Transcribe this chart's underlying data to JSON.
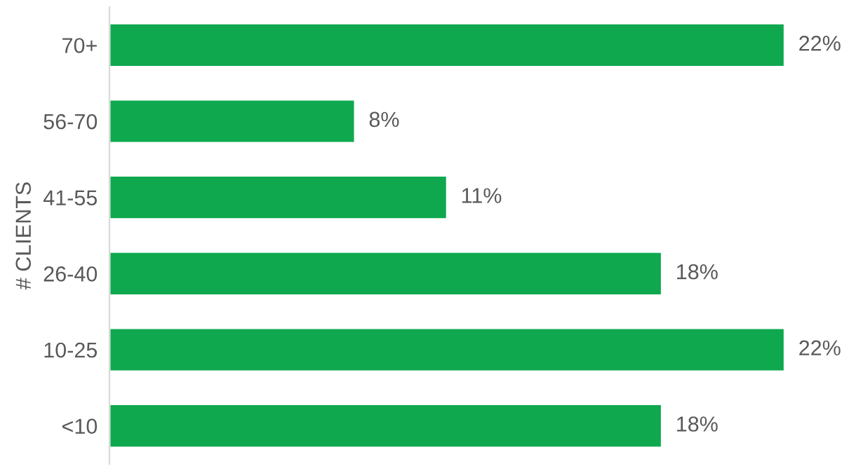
{
  "chart_data": {
    "type": "bar",
    "orientation": "horizontal",
    "ylabel": "# CLIENTS",
    "categories": [
      "70+",
      "56-70",
      "41-55",
      "26-40",
      "10-25",
      "<10"
    ],
    "values": [
      22,
      8,
      11,
      18,
      22,
      18
    ],
    "value_labels": [
      "22%",
      "8%",
      "11%",
      "18%",
      "22%",
      "18%"
    ],
    "color": "#0fa84f",
    "grid": false,
    "legend": false
  }
}
